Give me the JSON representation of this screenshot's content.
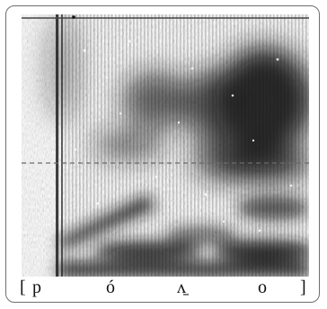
{
  "transcription": {
    "open_bracket": "[",
    "segments": [
      "p",
      "ó",
      "ʌ̱",
      "o"
    ],
    "close_bracket": "]"
  },
  "spectrogram": {
    "background_color": "#ffffff",
    "ink_color": "#1c1c1c",
    "dashed_reference_line_color": "#6a6a6a"
  }
}
